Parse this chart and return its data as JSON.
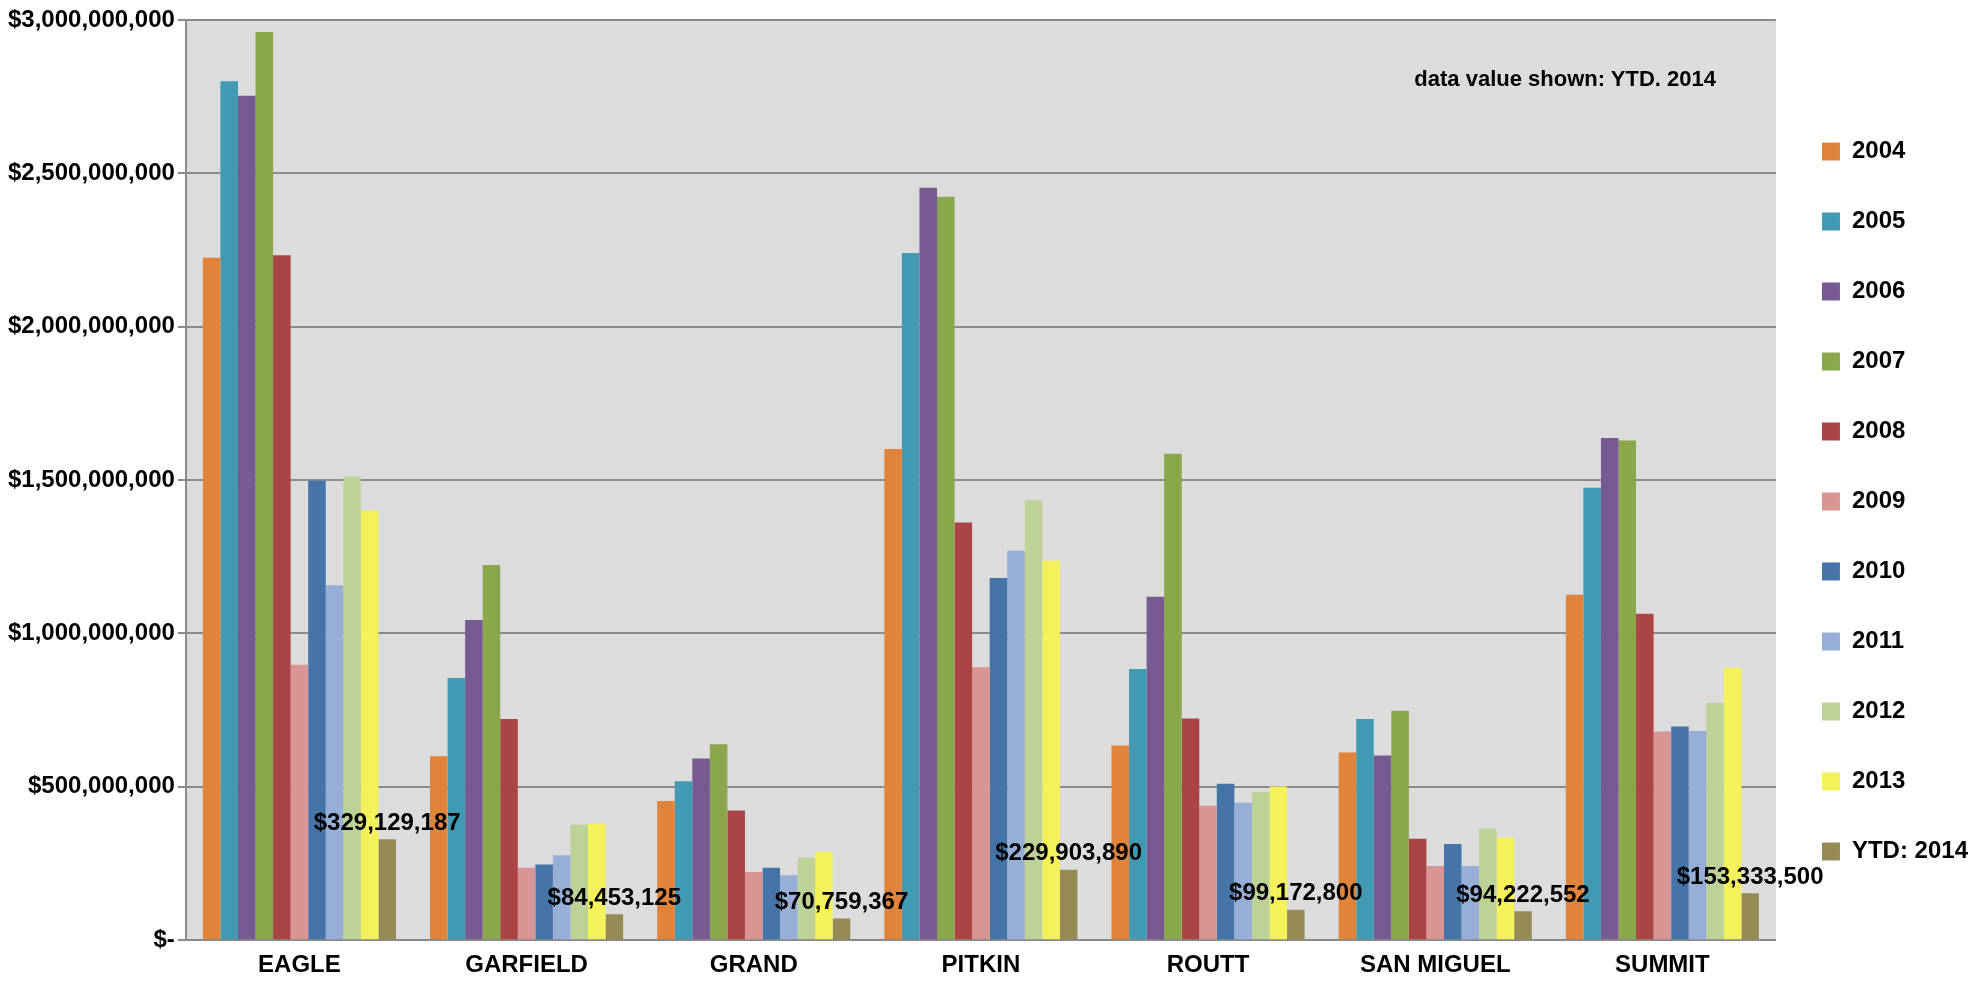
{
  "chart_data": {
    "type": "bar",
    "annotations": [
      "data value shown: YTD. 2014"
    ],
    "categories": [
      "EAGLE",
      "GARFIELD",
      "GRAND",
      "PITKIN",
      "ROUTT",
      "SAN MIGUEL",
      "SUMMIT"
    ],
    "series": [
      {
        "name": "2004",
        "color": "#e0843c",
        "values": [
          2225000000,
          600000000,
          454000000,
          1601000000,
          635000000,
          612000000,
          1126000000
        ]
      },
      {
        "name": "2005",
        "color": "#4299b2",
        "values": [
          2800000000,
          855000000,
          518000000,
          2240000000,
          884000000,
          721000000,
          1475000000
        ]
      },
      {
        "name": "2006",
        "color": "#765a90",
        "values": [
          2753000000,
          1044000000,
          592000000,
          2453000000,
          1120000000,
          602000000,
          1637000000
        ]
      },
      {
        "name": "2007",
        "color": "#8aa74c",
        "values": [
          2961000000,
          1223000000,
          639000000,
          2424000000,
          1586000000,
          748000000,
          1629000000
        ]
      },
      {
        "name": "2008",
        "color": "#ab4545",
        "values": [
          2233000000,
          721000000,
          423000000,
          1362000000,
          723000000,
          331000000,
          1064000000
        ]
      },
      {
        "name": "2009",
        "color": "#d89594",
        "values": [
          898000000,
          236000000,
          222000000,
          890000000,
          438000000,
          242000000,
          680000000
        ]
      },
      {
        "name": "2010",
        "color": "#4474a8",
        "values": [
          1498000000,
          247000000,
          236000000,
          1181000000,
          510000000,
          314000000,
          697000000
        ]
      },
      {
        "name": "2011",
        "color": "#97aed6",
        "values": [
          1157000000,
          277000000,
          212000000,
          1270000000,
          448000000,
          242000000,
          682000000
        ]
      },
      {
        "name": "2012",
        "color": "#bdd297",
        "values": [
          1512000000,
          376000000,
          269000000,
          1434000000,
          483000000,
          364000000,
          773000000
        ]
      },
      {
        "name": "2013",
        "color": "#f5f15a",
        "values": [
          1401000000,
          380000000,
          288000000,
          1237000000,
          501000000,
          335000000,
          888000000
        ]
      },
      {
        "name": "YTD: 2014",
        "color": "#958a54",
        "values": [
          329129187,
          84453125,
          70759367,
          229903890,
          99172800,
          94222552,
          153333500
        ],
        "value_labels": [
          "$329,129,187",
          "$84,453,125",
          "$70,759,367",
          "$229,903,890",
          "$99,172,800",
          "$94,222,552",
          "$153,333,500"
        ]
      }
    ],
    "ylim": [
      0,
      3000000000
    ],
    "yticks": [
      {
        "value": 0,
        "label": "$-"
      },
      {
        "value": 500000000,
        "label": "$500,000,000"
      },
      {
        "value": 1000000000,
        "label": "$1,000,000,000"
      },
      {
        "value": 1500000000,
        "label": "$1,500,000,000"
      },
      {
        "value": 2000000000,
        "label": "$2,000,000,000"
      },
      {
        "value": 2500000000,
        "label": "$2,500,000,000"
      },
      {
        "value": 3000000000,
        "label": "$3,000,000,000"
      }
    ],
    "grid": "y",
    "legend": "right"
  }
}
